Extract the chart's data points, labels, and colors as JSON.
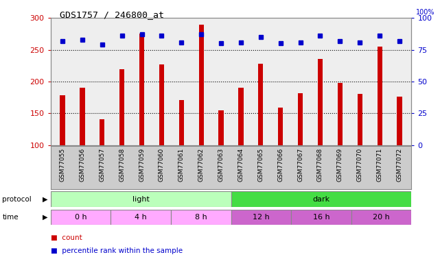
{
  "title": "GDS1757 / 246800_at",
  "samples": [
    "GSM77055",
    "GSM77056",
    "GSM77057",
    "GSM77058",
    "GSM77059",
    "GSM77060",
    "GSM77061",
    "GSM77062",
    "GSM77063",
    "GSM77064",
    "GSM77065",
    "GSM77066",
    "GSM77067",
    "GSM77068",
    "GSM77069",
    "GSM77070",
    "GSM77071",
    "GSM77072"
  ],
  "counts": [
    178,
    190,
    141,
    219,
    275,
    227,
    171,
    290,
    155,
    190,
    228,
    159,
    182,
    236,
    198,
    181,
    255,
    176
  ],
  "percentile_ranks": [
    82,
    83,
    79,
    86,
    87,
    86,
    81,
    87,
    80,
    81,
    85,
    80,
    81,
    86,
    82,
    81,
    86,
    82
  ],
  "ylim_left": [
    100,
    300
  ],
  "ylim_right": [
    0,
    100
  ],
  "yticks_left": [
    100,
    150,
    200,
    250,
    300
  ],
  "yticks_right": [
    0,
    25,
    50,
    75,
    100
  ],
  "bar_color": "#cc0000",
  "dot_color": "#0000cc",
  "grid_levels": [
    150,
    200,
    250
  ],
  "protocol_groups": [
    {
      "label": "light",
      "start": 0,
      "end": 9,
      "color": "#bbffbb"
    },
    {
      "label": "dark",
      "start": 9,
      "end": 18,
      "color": "#44dd44"
    }
  ],
  "time_groups": [
    {
      "label": "0 h",
      "start": 0,
      "end": 3,
      "color": "#ffaaff"
    },
    {
      "label": "4 h",
      "start": 3,
      "end": 6,
      "color": "#ffaaff"
    },
    {
      "label": "8 h",
      "start": 6,
      "end": 9,
      "color": "#ffaaff"
    },
    {
      "label": "12 h",
      "start": 9,
      "end": 12,
      "color": "#cc66cc"
    },
    {
      "label": "16 h",
      "start": 12,
      "end": 15,
      "color": "#cc66cc"
    },
    {
      "label": "20 h",
      "start": 15,
      "end": 18,
      "color": "#cc66cc"
    }
  ],
  "legend_items": [
    {
      "label": "count",
      "color": "#cc0000"
    },
    {
      "label": "percentile rank within the sample",
      "color": "#0000cc"
    }
  ],
  "left_axis_color": "#cc0000",
  "right_axis_color": "#0000cc",
  "bg_color": "#ffffff",
  "plot_bg_color": "#eeeeee",
  "xtick_bg_color": "#cccccc",
  "border_color": "#888888"
}
